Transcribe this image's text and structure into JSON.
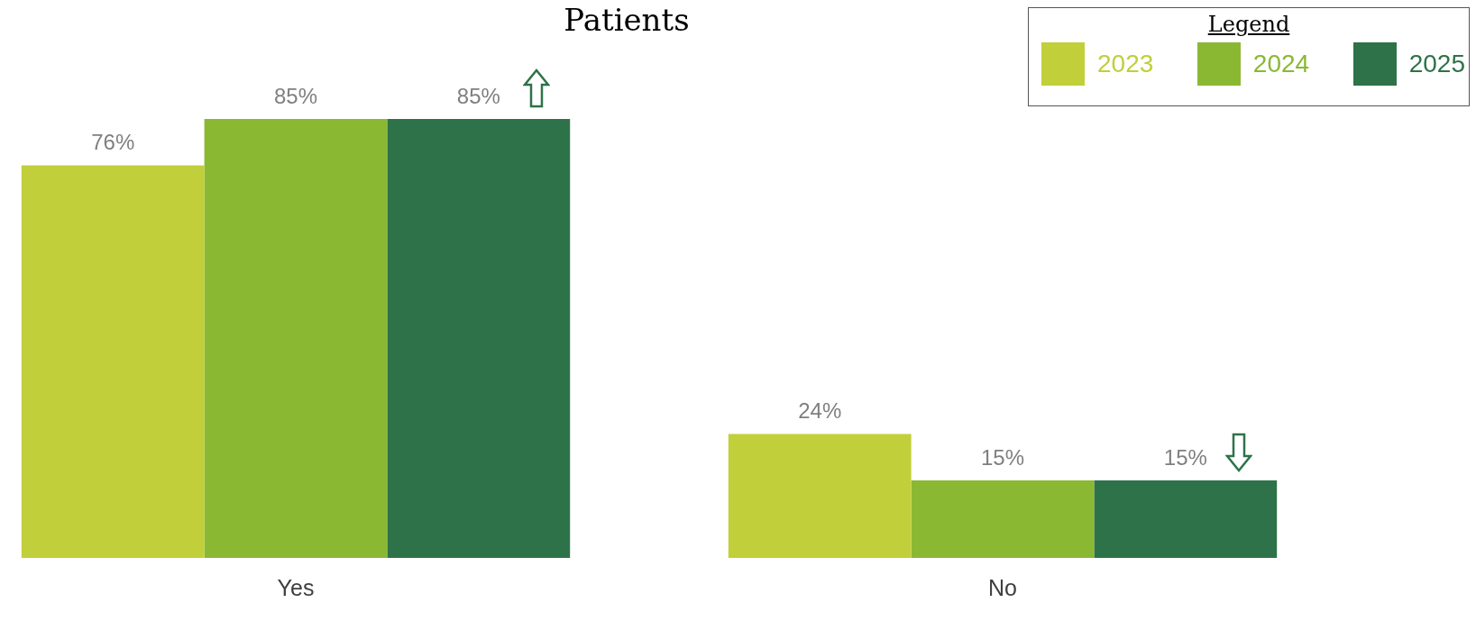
{
  "chart_data": {
    "type": "bar",
    "title": "Patients",
    "categories": [
      "Yes",
      "No"
    ],
    "series": [
      {
        "name": "2023",
        "color": "#c0cf3a",
        "values": [
          76,
          24
        ],
        "value_labels": [
          "76%",
          "24%"
        ]
      },
      {
        "name": "2024",
        "color": "#8bb833",
        "values": [
          85,
          15
        ],
        "value_labels": [
          "85%",
          "15%"
        ]
      },
      {
        "name": "2025",
        "color": "#2e7249",
        "values": [
          85,
          15
        ],
        "value_labels": [
          "85%",
          "15%"
        ]
      }
    ],
    "ylim": [
      0,
      100
    ],
    "legend": "top right",
    "legend_title": "Legend",
    "grid": false,
    "tick_labels": "x"
  }
}
